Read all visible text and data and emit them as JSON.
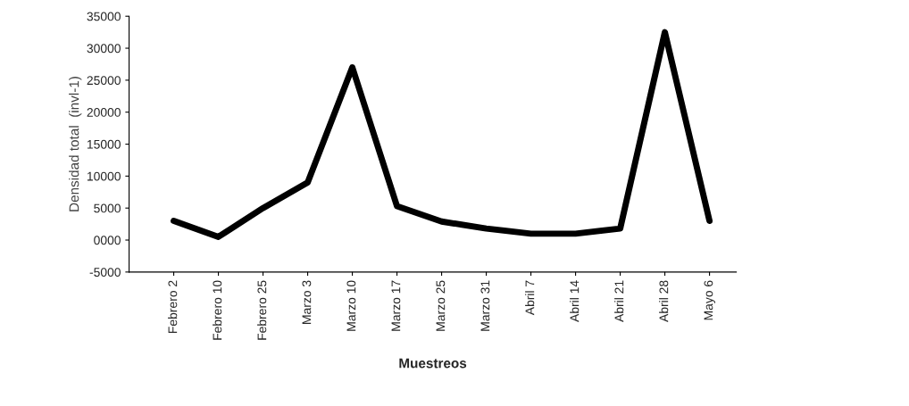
{
  "chart_data": {
    "type": "line",
    "xlabel": "Muestreos",
    "ylabel": "Densidad total  (invl-1)",
    "categories": [
      "Febrero 2",
      "Febrero 10",
      "Febrero 25",
      "Marzo 3",
      "Marzo 10",
      "Marzo 17",
      "Marzo 25",
      "Marzo 31",
      "Abril 7",
      "Abril 14",
      "Abril 21",
      "Abril 28",
      "Mayo 6"
    ],
    "series": [
      {
        "color": "#000000",
        "values": [
          3000,
          500,
          5000,
          9000,
          27000,
          5300,
          2900,
          1800,
          1000,
          1000,
          1800,
          32500,
          3000
        ]
      }
    ],
    "ylim": [
      -5000,
      35000
    ],
    "yticks": [
      {
        "value": -5000,
        "label": "-5000"
      },
      {
        "value": 0,
        "label": "0000"
      },
      5000,
      10000,
      15000,
      20000,
      25000,
      30000,
      35000
    ],
    "grid": false,
    "legend": false,
    "marker": "none",
    "line_style": "solid"
  }
}
